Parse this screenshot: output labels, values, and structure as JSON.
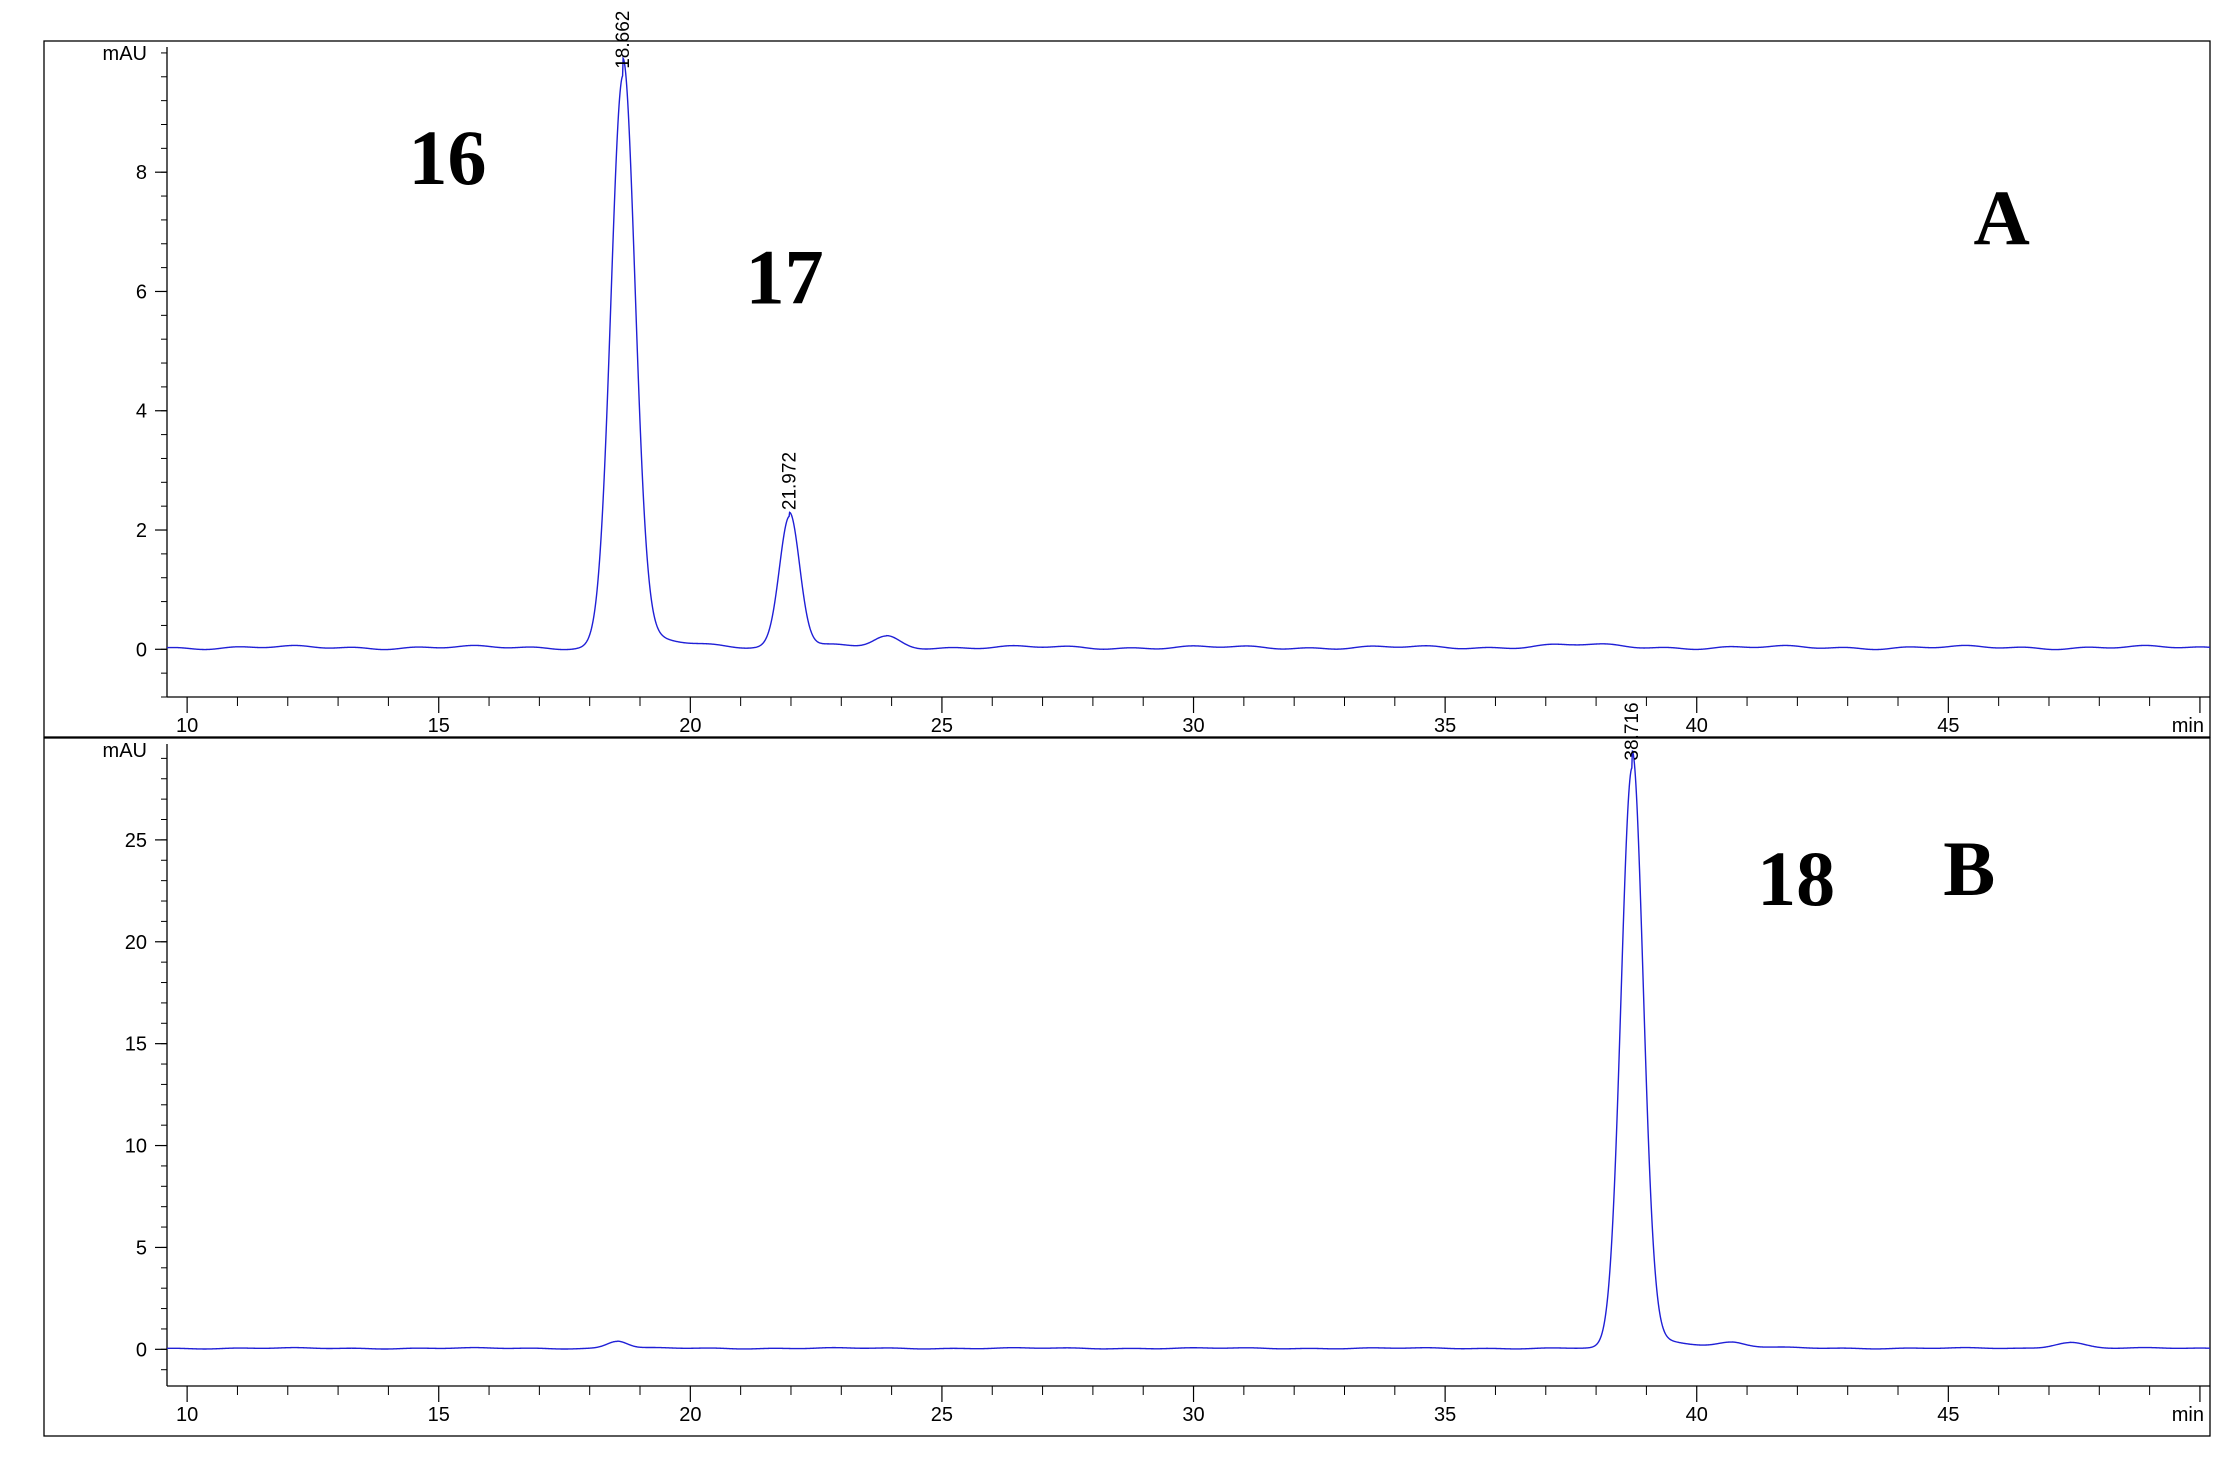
{
  "chart_data": [
    {
      "type": "line",
      "panel_label": "A",
      "ylabel": "mAU",
      "xlabel": "min",
      "xlim": [
        9.6,
        50.2
      ],
      "ylim": [
        -0.8,
        10.2
      ],
      "xticks": [
        10,
        15,
        20,
        25,
        30,
        35,
        40,
        45
      ],
      "yticks": [
        0,
        2,
        4,
        6,
        8
      ],
      "baseline": 0.03,
      "line_color": "#1f1fd6",
      "peaks": [
        {
          "x": 18.662,
          "height": 9.6,
          "width": 0.24,
          "label": "18.662"
        },
        {
          "x": 21.972,
          "height": 2.2,
          "width": 0.2,
          "label": "21.972"
        },
        {
          "x": 23.9,
          "height": 0.17,
          "width": 0.25,
          "label": ""
        },
        {
          "x": 37.5,
          "height": 0.04,
          "width": 0.8,
          "label": ""
        }
      ],
      "annotations": [
        {
          "text": "16",
          "x": 14.4,
          "y": 7.8
        },
        {
          "text": "17",
          "x": 21.1,
          "y": 5.8
        },
        {
          "text": "A",
          "x": 45.5,
          "y": 6.8
        }
      ]
    },
    {
      "type": "line",
      "panel_label": "B",
      "ylabel": "mAU",
      "xlabel": "min",
      "xlim": [
        9.6,
        50.2
      ],
      "ylim": [
        -1.8,
        30.0
      ],
      "xticks": [
        10,
        15,
        20,
        25,
        30,
        35,
        40,
        45
      ],
      "yticks": [
        0,
        5,
        10,
        15,
        20,
        25
      ],
      "baseline": 0.05,
      "line_color": "#1f1fd6",
      "peaks": [
        {
          "x": 38.716,
          "height": 28.5,
          "width": 0.22,
          "label": "38.716"
        },
        {
          "x": 18.55,
          "height": 0.35,
          "width": 0.2,
          "label": ""
        },
        {
          "x": 40.7,
          "height": 0.2,
          "width": 0.25,
          "label": ""
        },
        {
          "x": 47.4,
          "height": 0.3,
          "width": 0.3,
          "label": ""
        }
      ],
      "annotations": [
        {
          "text": "18",
          "x": 41.2,
          "y": 21.8
        },
        {
          "text": "B",
          "x": 44.9,
          "y": 22.3
        }
      ]
    }
  ]
}
